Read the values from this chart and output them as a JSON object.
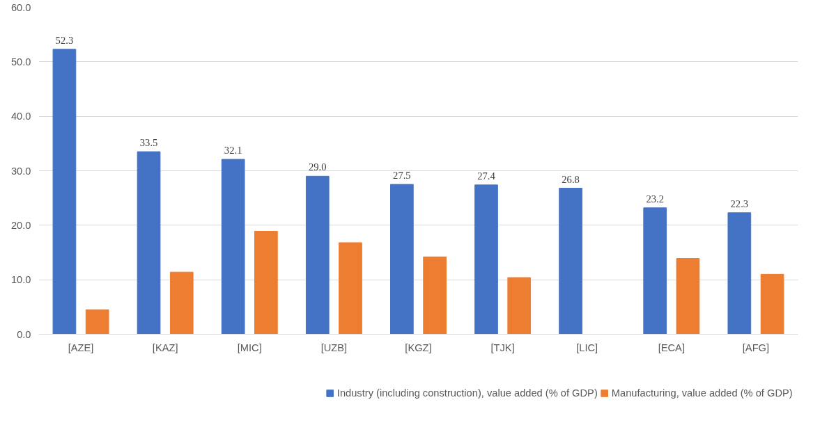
{
  "chart_data": {
    "type": "bar",
    "categories": [
      "[AZE]",
      "[KAZ]",
      "[MIC]",
      "[UZB]",
      "[KGZ]",
      "[TJK]",
      "[LIC]",
      "[ECA]",
      "[AFG]"
    ],
    "series": [
      {
        "name": "Industry (including construction), value added (% of GDP)",
        "color": "#4472c4",
        "values": [
          52.3,
          33.5,
          32.1,
          29.0,
          27.5,
          27.4,
          26.8,
          23.2,
          22.3
        ],
        "value_labels": [
          "52.3",
          "33.5",
          "32.1",
          "29.0",
          "27.5",
          "27.4",
          "26.8",
          "23.2",
          "22.3"
        ]
      },
      {
        "name": "Manufacturing, value added (% of GDP)",
        "color": "#ed7d31",
        "values": [
          4.5,
          11.4,
          18.9,
          16.8,
          14.2,
          10.4,
          null,
          13.9,
          11.0
        ]
      }
    ],
    "ylim": [
      0,
      60
    ],
    "yticks": [
      {
        "value": 0,
        "label": "0.0"
      },
      {
        "value": 10,
        "label": "10.0"
      },
      {
        "value": 20,
        "label": "20.0"
      },
      {
        "value": 30,
        "label": "30.0"
      },
      {
        "value": 40,
        "label": "40.0"
      },
      {
        "value": 50,
        "label": "50.0"
      },
      {
        "value": 60,
        "label": "60.0"
      }
    ],
    "grid": "y",
    "legend": "bottom"
  }
}
